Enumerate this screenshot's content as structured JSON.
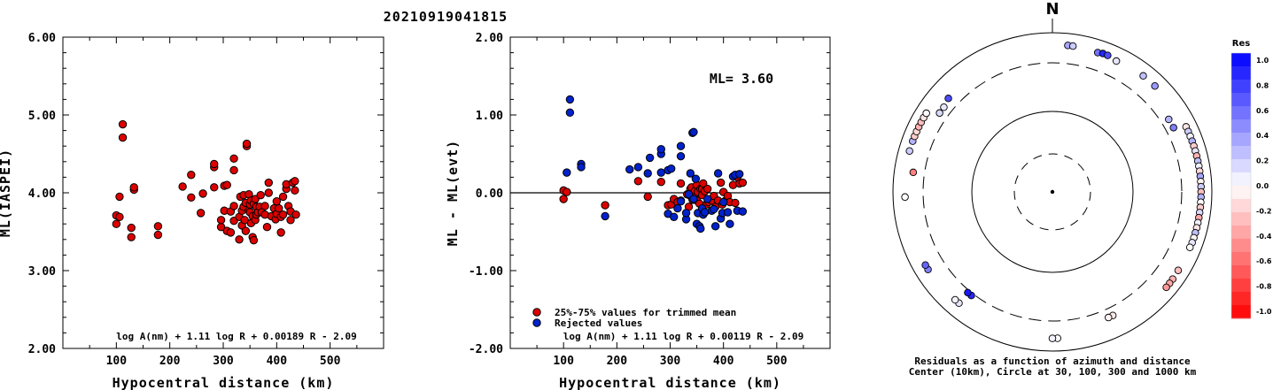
{
  "title": "20210919041815",
  "chart_data": [
    {
      "type": "scatter",
      "ylabel": "ML(IASPEI)",
      "xlabel": "Hypocentral distance (km)",
      "xlim": [
        0,
        600
      ],
      "ylim": [
        2.0,
        6.0
      ],
      "xticks": [
        "100",
        "200",
        "300",
        "400",
        "500"
      ],
      "yticks": [
        "2.00",
        "3.00",
        "4.00",
        "5.00",
        "6.00"
      ],
      "formula": "log A(nm) + 1.11 log R + 0.00189 R - 2.09",
      "series": [
        {
          "color": "#dd0000",
          "points": [
            [
              100,
              3.71
            ],
            [
              100,
              3.6
            ],
            [
              106,
              3.69
            ],
            [
              106,
              3.95
            ],
            [
              112,
              4.88
            ],
            [
              112,
              4.71
            ],
            [
              128,
              3.55
            ],
            [
              128,
              3.43
            ],
            [
              133,
              4.04
            ],
            [
              133,
              4.07
            ],
            [
              178,
              3.57
            ],
            [
              178,
              3.46
            ],
            [
              224,
              4.08
            ],
            [
              240,
              3.94
            ],
            [
              240,
              4.23
            ],
            [
              258,
              3.74
            ],
            [
              262,
              3.99
            ],
            [
              283,
              4.07
            ],
            [
              283,
              4.33
            ],
            [
              283,
              4.37
            ],
            [
              296,
              3.56
            ],
            [
              296,
              3.65
            ],
            [
              302,
              3.77
            ],
            [
              302,
              4.09
            ],
            [
              307,
              3.51
            ],
            [
              307,
              4.1
            ],
            [
              314,
              3.49
            ],
            [
              314,
              3.76
            ],
            [
              320,
              3.64
            ],
            [
              320,
              3.83
            ],
            [
              320,
              4.29
            ],
            [
              320,
              4.44
            ],
            [
              330,
              3.4
            ],
            [
              330,
              3.69
            ],
            [
              332,
              3.95
            ],
            [
              335,
              3.58
            ],
            [
              335,
              3.77
            ],
            [
              338,
              3.82
            ],
            [
              338,
              3.97
            ],
            [
              340,
              3.65
            ],
            [
              342,
              3.51
            ],
            [
              342,
              3.87
            ],
            [
              344,
              4.6
            ],
            [
              344,
              4.63
            ],
            [
              348,
              3.77
            ],
            [
              348,
              3.98
            ],
            [
              350,
              3.75
            ],
            [
              350,
              3.85
            ],
            [
              352,
              3.61
            ],
            [
              352,
              3.9
            ],
            [
              355,
              3.43
            ],
            [
              355,
              3.7
            ],
            [
              357,
              3.39
            ],
            [
              357,
              3.86
            ],
            [
              360,
              3.65
            ],
            [
              360,
              3.92
            ],
            [
              362,
              3.72
            ],
            [
              362,
              3.82
            ],
            [
              365,
              3.75
            ],
            [
              368,
              3.82
            ],
            [
              370,
              3.97
            ],
            [
              372,
              3.75
            ],
            [
              378,
              3.72
            ],
            [
              378,
              3.83
            ],
            [
              382,
              3.56
            ],
            [
              385,
              4.0
            ],
            [
              385,
              4.13
            ],
            [
              390,
              3.7
            ],
            [
              395,
              3.8
            ],
            [
              398,
              3.66
            ],
            [
              400,
              3.73
            ],
            [
              400,
              3.89
            ],
            [
              404,
              3.8
            ],
            [
              408,
              3.49
            ],
            [
              408,
              3.69
            ],
            [
              412,
              3.72
            ],
            [
              412,
              3.95
            ],
            [
              418,
              4.05
            ],
            [
              418,
              4.11
            ],
            [
              422,
              3.83
            ],
            [
              426,
              3.65
            ],
            [
              426,
              3.76
            ],
            [
              430,
              4.13
            ],
            [
              434,
              4.03
            ],
            [
              434,
              4.15
            ],
            [
              436,
              3.72
            ]
          ]
        }
      ]
    },
    {
      "type": "scatter",
      "ylabel": "ML - ML(evt)",
      "xlabel": "Hypocentral distance (km)",
      "xlim": [
        0,
        600
      ],
      "ylim": [
        -2.0,
        2.0
      ],
      "xticks": [
        "100",
        "200",
        "300",
        "400",
        "500"
      ],
      "yticks": [
        "-2.00",
        "-1.00",
        "0.00",
        "1.00",
        "2.00"
      ],
      "annotation": "ML= 3.60",
      "formula": "log A(nm) + 1.11 log R + 0.00119 R - 2.09",
      "series": [
        {
          "name": "25%-75% values for trimmed mean",
          "color": "#dd0000",
          "points": [
            [
              100,
              0.03
            ],
            [
              100,
              -0.08
            ],
            [
              106,
              0.01
            ],
            [
              178,
              -0.16
            ],
            [
              240,
              0.15
            ],
            [
              258,
              -0.05
            ],
            [
              283,
              0.14
            ],
            [
              296,
              -0.16
            ],
            [
              302,
              -0.15
            ],
            [
              307,
              -0.08
            ],
            [
              314,
              -0.12
            ],
            [
              320,
              -0.1
            ],
            [
              320,
              0.12
            ],
            [
              332,
              -0.02
            ],
            [
              335,
              -0.18
            ],
            [
              338,
              0.05
            ],
            [
              338,
              -0.04
            ],
            [
              340,
              0.07
            ],
            [
              342,
              -0.09
            ],
            [
              346,
              0.02
            ],
            [
              348,
              -0.05
            ],
            [
              350,
              0.1
            ],
            [
              350,
              -0.1
            ],
            [
              352,
              0.01
            ],
            [
              355,
              -0.14
            ],
            [
              357,
              0.05
            ],
            [
              360,
              0.05
            ],
            [
              360,
              -0.03
            ],
            [
              362,
              0.12
            ],
            [
              365,
              0.02
            ],
            [
              368,
              -0.15
            ],
            [
              370,
              0.05
            ],
            [
              372,
              -0.12
            ],
            [
              378,
              -0.1
            ],
            [
              382,
              -0.04
            ],
            [
              385,
              -0.18
            ],
            [
              390,
              -0.1
            ],
            [
              395,
              0.13
            ],
            [
              398,
              -0.15
            ],
            [
              400,
              0.01
            ],
            [
              404,
              -0.1
            ],
            [
              408,
              -0.04
            ],
            [
              412,
              -0.12
            ],
            [
              418,
              0.1
            ],
            [
              422,
              -0.13
            ],
            [
              426,
              0.2
            ],
            [
              430,
              0.12
            ],
            [
              436,
              0.13
            ]
          ]
        },
        {
          "name": "Rejected values",
          "color": "#0022cc",
          "points": [
            [
              106,
              0.26
            ],
            [
              112,
              1.03
            ],
            [
              112,
              1.2
            ],
            [
              133,
              0.37
            ],
            [
              133,
              0.33
            ],
            [
              178,
              -0.3
            ],
            [
              224,
              0.3
            ],
            [
              240,
              0.33
            ],
            [
              258,
              0.25
            ],
            [
              262,
              0.45
            ],
            [
              283,
              0.5
            ],
            [
              283,
              0.56
            ],
            [
              283,
              0.26
            ],
            [
              296,
              -0.27
            ],
            [
              296,
              0.29
            ],
            [
              302,
              0.31
            ],
            [
              307,
              -0.31
            ],
            [
              314,
              -0.2
            ],
            [
              320,
              0.6
            ],
            [
              320,
              0.47
            ],
            [
              320,
              -0.11
            ],
            [
              330,
              -0.34
            ],
            [
              330,
              -0.26
            ],
            [
              335,
              -0.02
            ],
            [
              338,
              0.25
            ],
            [
              342,
              0.77
            ],
            [
              344,
              0.78
            ],
            [
              344,
              -0.08
            ],
            [
              348,
              0.18
            ],
            [
              350,
              -0.4
            ],
            [
              352,
              -0.26
            ],
            [
              355,
              -0.43
            ],
            [
              357,
              -0.46
            ],
            [
              360,
              -0.2
            ],
            [
              362,
              -0.28
            ],
            [
              365,
              -0.25
            ],
            [
              370,
              -0.08
            ],
            [
              378,
              -0.23
            ],
            [
              382,
              -0.21
            ],
            [
              385,
              -0.43
            ],
            [
              390,
              0.25
            ],
            [
              395,
              -0.33
            ],
            [
              398,
              -0.26
            ],
            [
              400,
              -0.12
            ],
            [
              408,
              -0.25
            ],
            [
              412,
              -0.4
            ],
            [
              418,
              0.21
            ],
            [
              422,
              0.23
            ],
            [
              426,
              -0.23
            ],
            [
              430,
              0.24
            ],
            [
              436,
              -0.24
            ]
          ]
        }
      ]
    },
    {
      "type": "polar-scatter",
      "north_label": "N",
      "caption_line1": "Residuals as a function of azimuth and distance",
      "caption_line2": "Center (10km), Circle at 30, 100, 300 and 1000 km",
      "colorbar": {
        "title": "Res",
        "ticks": [
          "1.0",
          "0.8",
          "0.6",
          "0.4",
          "0.2",
          "0.0",
          "-0.2",
          "-0.4",
          "-0.6",
          "-0.8",
          "-1.0"
        ]
      },
      "points_azimuth_deg_distance_km_residual": [
        [
          6,
          620,
          0.35
        ],
        [
          8,
          620,
          0.2
        ],
        [
          18,
          600,
          0.55
        ],
        [
          20,
          620,
          0.85
        ],
        [
          22,
          620,
          0.7
        ],
        [
          26,
          580,
          0.1
        ],
        [
          38,
          620,
          0.25
        ],
        [
          44,
          620,
          0.4
        ],
        [
          58,
          410,
          0.3
        ],
        [
          62,
          410,
          0.5
        ],
        [
          64,
          650,
          -0.1
        ],
        [
          66,
          650,
          0.2
        ],
        [
          68,
          650,
          0.05
        ],
        [
          70,
          650,
          0.3
        ],
        [
          72,
          650,
          -0.2
        ],
        [
          74,
          650,
          0.1
        ],
        [
          76,
          650,
          -0.3
        ],
        [
          78,
          650,
          0.25
        ],
        [
          80,
          650,
          0.05
        ],
        [
          82,
          650,
          -0.15
        ],
        [
          84,
          650,
          0.35
        ],
        [
          86,
          650,
          -0.05
        ],
        [
          88,
          650,
          0.2
        ],
        [
          90,
          650,
          -0.25
        ],
        [
          92,
          650,
          0.3
        ],
        [
          94,
          650,
          0.0
        ],
        [
          96,
          650,
          -0.2
        ],
        [
          98,
          650,
          0.15
        ],
        [
          100,
          650,
          -0.35
        ],
        [
          102,
          650,
          0.05
        ],
        [
          104,
          650,
          -0.1
        ],
        [
          106,
          650,
          0.25
        ],
        [
          108,
          650,
          -0.05
        ],
        [
          110,
          650,
          0.1
        ],
        [
          112,
          640,
          0.0
        ],
        [
          122,
          640,
          -0.25
        ],
        [
          126,
          650,
          -0.3
        ],
        [
          128,
          650,
          -0.35
        ],
        [
          130,
          650,
          -0.4
        ],
        [
          154,
          420,
          -0.1
        ],
        [
          156,
          420,
          -0.05
        ],
        [
          178,
          600,
          0.0
        ],
        [
          180,
          600,
          0.05
        ],
        [
          218,
          330,
          0.85
        ],
        [
          220,
          330,
          0.9
        ],
        [
          220,
          570,
          0.1
        ],
        [
          222,
          570,
          0.05
        ],
        [
          238,
          600,
          0.5
        ],
        [
          240,
          600,
          0.6
        ],
        [
          268,
          620,
          0.0
        ],
        [
          278,
          470,
          -0.5
        ],
        [
          286,
          650,
          0.2
        ],
        [
          290,
          650,
          0.3
        ],
        [
          292,
          650,
          -0.2
        ],
        [
          294,
          650,
          -0.15
        ],
        [
          296,
          650,
          -0.3
        ],
        [
          298,
          650,
          -0.25
        ],
        [
          300,
          650,
          -0.1
        ],
        [
          302,
          650,
          0.0
        ],
        [
          305,
          420,
          0.15
        ],
        [
          308,
          420,
          0.1
        ],
        [
          312,
          460,
          0.7
        ]
      ]
    }
  ]
}
